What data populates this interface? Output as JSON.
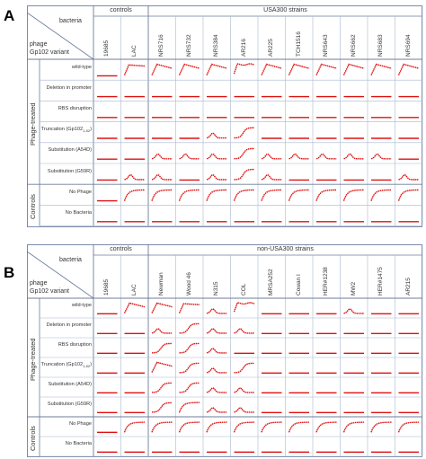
{
  "panels": [
    {
      "letter": "A",
      "header": {
        "bacteria": "bacteria",
        "phage": "phage",
        "variant": "Gp102 variant"
      },
      "groups": [
        {
          "label": "controls"
        },
        {
          "label": "USA300 strains"
        }
      ],
      "columns": [
        "19685",
        "LAC",
        "NRS716",
        "NRS732",
        "NRS384",
        "AR216",
        "AR225",
        "TCH1516",
        "NRS643",
        "NRS662",
        "NRS683",
        "NRS694"
      ],
      "side_groups": [
        "Phage-treated",
        "Controls"
      ],
      "rows": [
        "wild-type",
        "Deletion in promoter",
        "RBS disruption",
        "Truncation (Gp102",
        "Substitution (A54D)",
        "Substitution (G59R)",
        "No Phage",
        "No Bacteria"
      ],
      "truncation_subscript": "1-52",
      "curves": [
        [
          "flat",
          "step",
          "peak",
          "peak",
          "peak",
          "plateau",
          "peak",
          "peak",
          "peak",
          "peak",
          "peak",
          "peak"
        ],
        [
          "flat",
          "flat",
          "flat",
          "flat",
          "flat",
          "flat",
          "flat",
          "flat",
          "flat",
          "flat",
          "flat",
          "flat"
        ],
        [
          "flat",
          "flat",
          "flat",
          "flat",
          "flat",
          "flat",
          "flat",
          "flat",
          "flat",
          "flat",
          "flat",
          "flat"
        ],
        [
          "flat",
          "flat",
          "flat",
          "flat",
          "bump",
          "rise",
          "flat",
          "flat",
          "flat",
          "flat",
          "flat",
          "flat"
        ],
        [
          "flat",
          "flat",
          "bump",
          "bump",
          "bump",
          "rise",
          "bump",
          "bump",
          "bump",
          "bump",
          "bump",
          "flat"
        ],
        [
          "flat",
          "bump",
          "bump",
          "flat",
          "bump",
          "rise",
          "bump",
          "flat",
          "flat",
          "flat",
          "flat",
          "bump"
        ],
        [
          "flat",
          "sat",
          "sat",
          "sat",
          "sat",
          "sat",
          "sat",
          "sat",
          "sat",
          "sat",
          "sat",
          "sat"
        ],
        [
          "flat",
          "flat",
          "flat",
          "flat",
          "flat",
          "flat",
          "flat",
          "flat",
          "flat",
          "flat",
          "flat",
          "flat"
        ]
      ]
    },
    {
      "letter": "B",
      "header": {
        "bacteria": "bacteria",
        "phage": "phage",
        "variant": "Gp102 variant"
      },
      "groups": [
        {
          "label": "controls"
        },
        {
          "label": "non-USA300 strains"
        }
      ],
      "columns": [
        "19685",
        "LAC",
        "Newman",
        "Wood 46",
        "N315",
        "COL",
        "MRSA252",
        "Cowan I",
        "HER#1238",
        "MW2",
        "HER#1475",
        "AR215"
      ],
      "side_groups": [
        "Phage-treated",
        "Controls"
      ],
      "rows": [
        "wild-type",
        "Deletion in promoter",
        "RBS disruption",
        "Truncation (Gp102",
        "Substitution (A54D)",
        "Substitution (G59R)",
        "No Phage",
        "No Bacteria"
      ],
      "truncation_subscript": "1-52",
      "curves": [
        [
          "flat",
          "peak",
          "peak",
          "step",
          "bump",
          "plateau",
          "flat",
          "flat",
          "flat",
          "bump",
          "flat",
          "flat"
        ],
        [
          "flat",
          "flat",
          "bump",
          "rise",
          "bump",
          "bump",
          "flat",
          "flat",
          "flat",
          "flat",
          "flat",
          "flat"
        ],
        [
          "flat",
          "flat",
          "rise",
          "rise",
          "bump",
          "flat",
          "flat",
          "flat",
          "flat",
          "flat",
          "flat",
          "flat"
        ],
        [
          "flat",
          "flat",
          "peak",
          "rise",
          "bump",
          "rise",
          "flat",
          "flat",
          "flat",
          "flat",
          "flat",
          "flat"
        ],
        [
          "flat",
          "flat",
          "rise",
          "rise",
          "bump",
          "bump",
          "flat",
          "flat",
          "flat",
          "flat",
          "flat",
          "flat"
        ],
        [
          "flat",
          "flat",
          "rise",
          "sat",
          "bump",
          "bump",
          "flat",
          "flat",
          "flat",
          "flat",
          "flat",
          "flat"
        ],
        [
          "flat",
          "sat",
          "sat",
          "sat",
          "sat",
          "sat",
          "sat",
          "sat",
          "sat",
          "sat",
          "sat",
          "sat"
        ],
        [
          "flat",
          "flat",
          "flat",
          "flat",
          "flat",
          "flat",
          "flat",
          "flat",
          "flat",
          "flat",
          "flat",
          "flat"
        ]
      ]
    }
  ],
  "colors": {
    "curve": "#e01010",
    "grid": "#a8b7cf",
    "frame": "#6c7d99"
  }
}
